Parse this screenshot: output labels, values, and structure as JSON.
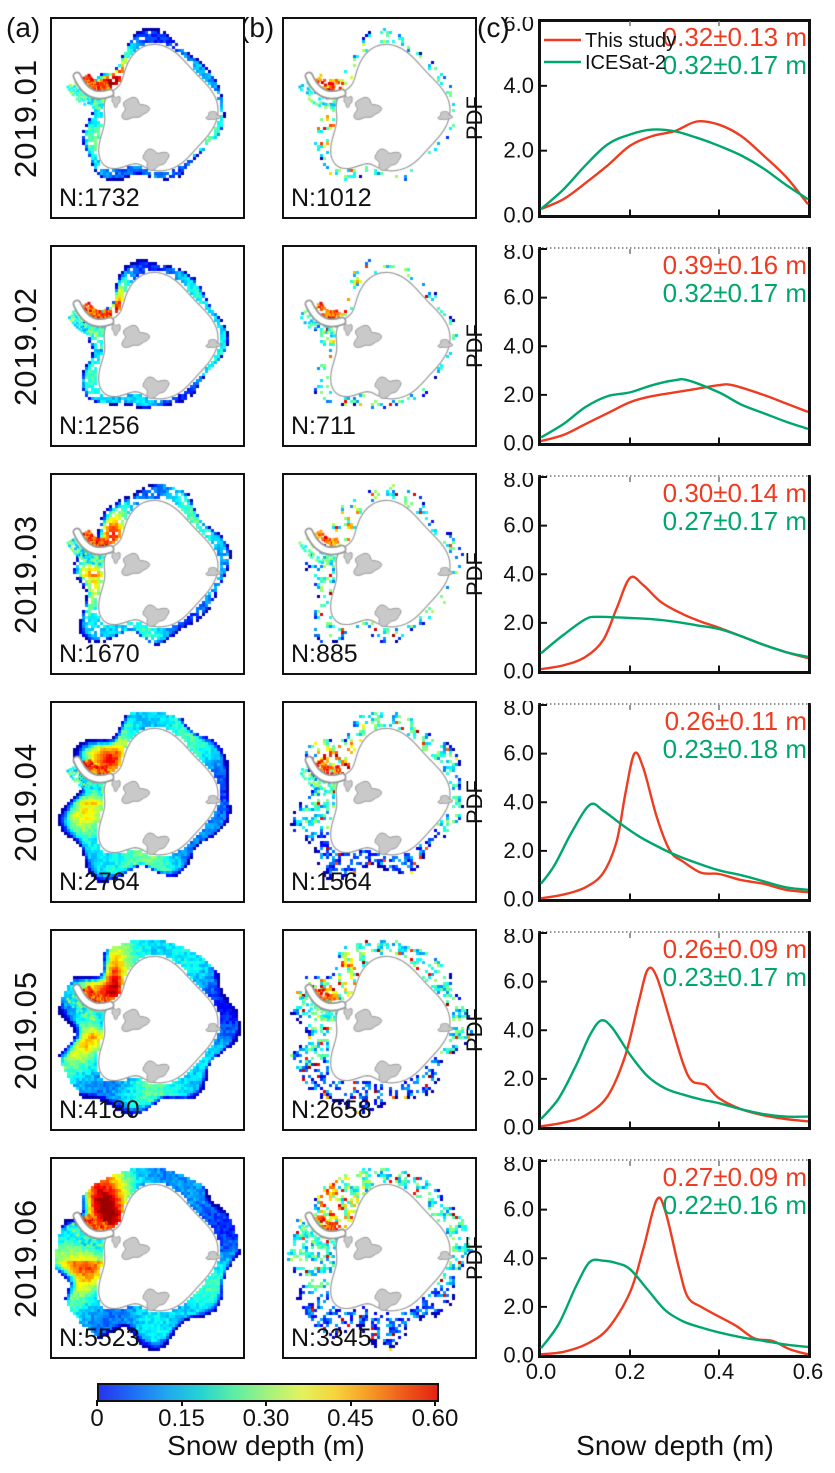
{
  "panels": {
    "a": "(a)",
    "b": "(b)",
    "c": "(c)"
  },
  "axis": {
    "xlabel": "Snow depth (m)",
    "ylabel": "PDF",
    "xticks": [
      "0.0",
      "0.2",
      "0.4",
      "0.6"
    ]
  },
  "legend": {
    "items": [
      {
        "label": "This study",
        "color": "#ee3c21"
      },
      {
        "label": "ICESat-2",
        "color": "#00a76d"
      }
    ]
  },
  "colorbar": {
    "label": "Snow depth (m)",
    "ticks": [
      "0",
      "0.15",
      "0.30",
      "0.45",
      "0.60"
    ],
    "gradient": [
      "#2633f0",
      "#1f6df5",
      "#1fa8f0",
      "#25d3d3",
      "#5ceea3",
      "#a4f27d",
      "#e3f25e",
      "#f7d33c",
      "#f79a25",
      "#ef5c1a",
      "#e32313"
    ]
  },
  "rows": [
    {
      "month": "2019.01",
      "map_a_n": "N:1732",
      "map_b_n": "N:1012"
    },
    {
      "month": "2019.02",
      "map_a_n": "N:1256",
      "map_b_n": "N:711"
    },
    {
      "month": "2019.03",
      "map_a_n": "N:1670",
      "map_b_n": "N:885"
    },
    {
      "month": "2019.04",
      "map_a_n": "N:2764",
      "map_b_n": "N:1564"
    },
    {
      "month": "2019.05",
      "map_a_n": "N:4180",
      "map_b_n": "N:2658"
    },
    {
      "month": "2019.06",
      "map_a_n": "N:5523",
      "map_b_n": "N:3345"
    }
  ],
  "chart_data": [
    {
      "type": "line",
      "month": "2019.01",
      "xlabel": "Snow depth (m)",
      "ylabel": "PDF",
      "xlim": [
        0,
        0.6
      ],
      "ylim": [
        0,
        6
      ],
      "yticks": [
        "0.0",
        "2.0",
        "4.0",
        "6.0"
      ],
      "series": [
        {
          "name": "This study",
          "color": "#ee3c21",
          "mean_std": "0.32±0.13 m",
          "x": [
            0,
            0.05,
            0.1,
            0.15,
            0.2,
            0.25,
            0.3,
            0.35,
            0.4,
            0.45,
            0.5,
            0.55,
            0.6
          ],
          "y": [
            0.2,
            0.5,
            1.0,
            1.55,
            2.15,
            2.45,
            2.6,
            2.9,
            2.8,
            2.45,
            1.85,
            1.2,
            0.35
          ]
        },
        {
          "name": "ICESat-2",
          "color": "#00a76d",
          "mean_std": "0.32±0.17 m",
          "x": [
            0,
            0.05,
            0.1,
            0.15,
            0.2,
            0.25,
            0.3,
            0.35,
            0.4,
            0.45,
            0.5,
            0.55,
            0.6
          ],
          "y": [
            0.2,
            0.8,
            1.55,
            2.2,
            2.5,
            2.65,
            2.6,
            2.4,
            2.15,
            1.85,
            1.45,
            0.95,
            0.5
          ]
        }
      ]
    },
    {
      "type": "line",
      "month": "2019.02",
      "xlabel": "Snow depth (m)",
      "ylabel": "PDF",
      "xlim": [
        0,
        0.6
      ],
      "ylim": [
        0,
        8
      ],
      "yticks": [
        "0.0",
        "2.0",
        "4.0",
        "6.0",
        "8.0"
      ],
      "series": [
        {
          "name": "This study",
          "color": "#ee3c21",
          "mean_std": "0.39±0.16 m",
          "x": [
            0,
            0.05,
            0.1,
            0.15,
            0.2,
            0.25,
            0.3,
            0.35,
            0.4,
            0.43,
            0.5,
            0.55,
            0.6
          ],
          "y": [
            0.1,
            0.35,
            0.8,
            1.25,
            1.7,
            1.95,
            2.1,
            2.25,
            2.4,
            2.4,
            2.0,
            1.65,
            1.3
          ]
        },
        {
          "name": "ICESat-2",
          "color": "#00a76d",
          "mean_std": "0.32±0.17 m",
          "x": [
            0,
            0.05,
            0.1,
            0.15,
            0.2,
            0.25,
            0.3,
            0.33,
            0.4,
            0.45,
            0.5,
            0.55,
            0.6
          ],
          "y": [
            0.25,
            0.8,
            1.5,
            1.95,
            2.1,
            2.4,
            2.6,
            2.6,
            2.1,
            1.6,
            1.25,
            0.9,
            0.6
          ]
        }
      ]
    },
    {
      "type": "line",
      "month": "2019.03",
      "xlabel": "Snow depth (m)",
      "ylabel": "PDF",
      "xlim": [
        0,
        0.6
      ],
      "ylim": [
        0,
        8
      ],
      "yticks": [
        "0.0",
        "2.0",
        "4.0",
        "6.0",
        "8.0"
      ],
      "series": [
        {
          "name": "This study",
          "color": "#ee3c21",
          "mean_std": "0.30±0.14 m",
          "x": [
            0,
            0.05,
            0.1,
            0.14,
            0.17,
            0.2,
            0.23,
            0.27,
            0.32,
            0.36,
            0.4,
            0.45,
            0.5,
            0.55,
            0.6
          ],
          "y": [
            0.1,
            0.25,
            0.6,
            1.3,
            2.6,
            3.85,
            3.55,
            2.85,
            2.35,
            2.05,
            1.8,
            1.45,
            1.1,
            0.8,
            0.55
          ]
        },
        {
          "name": "ICESat-2",
          "color": "#00a76d",
          "mean_std": "0.27±0.17 m",
          "x": [
            0,
            0.05,
            0.1,
            0.13,
            0.2,
            0.25,
            0.3,
            0.35,
            0.4,
            0.45,
            0.5,
            0.55,
            0.6
          ],
          "y": [
            0.75,
            1.5,
            2.15,
            2.25,
            2.2,
            2.15,
            2.05,
            1.9,
            1.75,
            1.45,
            1.1,
            0.8,
            0.6
          ]
        }
      ]
    },
    {
      "type": "line",
      "month": "2019.04",
      "xlabel": "Snow depth (m)",
      "ylabel": "PDF",
      "xlim": [
        0,
        0.6
      ],
      "ylim": [
        0,
        8
      ],
      "yticks": [
        "0.0",
        "2.0",
        "4.0",
        "6.0",
        "8.0"
      ],
      "series": [
        {
          "name": "This study",
          "color": "#ee3c21",
          "mean_std": "0.26±0.11 m",
          "x": [
            0,
            0.05,
            0.1,
            0.14,
            0.17,
            0.19,
            0.21,
            0.23,
            0.26,
            0.29,
            0.32,
            0.36,
            0.4,
            0.45,
            0.5,
            0.55,
            0.6
          ],
          "y": [
            0.05,
            0.2,
            0.5,
            1.1,
            2.4,
            4.4,
            6.0,
            5.4,
            3.4,
            2.0,
            1.55,
            1.1,
            1.05,
            0.8,
            0.65,
            0.4,
            0.3
          ]
        },
        {
          "name": "ICESat-2",
          "color": "#00a76d",
          "mean_std": "0.23±0.18 m",
          "x": [
            0,
            0.03,
            0.07,
            0.11,
            0.14,
            0.18,
            0.22,
            0.26,
            0.3,
            0.35,
            0.4,
            0.45,
            0.5,
            0.55,
            0.6
          ],
          "y": [
            0.65,
            1.4,
            2.8,
            3.9,
            3.65,
            3.1,
            2.6,
            2.2,
            1.85,
            1.5,
            1.2,
            1.0,
            0.75,
            0.5,
            0.4
          ]
        }
      ]
    },
    {
      "type": "line",
      "month": "2019.05",
      "xlabel": "Snow depth (m)",
      "ylabel": "PDF",
      "xlim": [
        0,
        0.6
      ],
      "ylim": [
        0,
        8
      ],
      "yticks": [
        "0.0",
        "2.0",
        "4.0",
        "6.0",
        "8.0"
      ],
      "series": [
        {
          "name": "This study",
          "color": "#ee3c21",
          "mean_std": "0.26±0.09 m",
          "x": [
            0,
            0.05,
            0.1,
            0.15,
            0.19,
            0.22,
            0.24,
            0.26,
            0.29,
            0.32,
            0.34,
            0.37,
            0.4,
            0.45,
            0.5,
            0.55,
            0.6
          ],
          "y": [
            0.05,
            0.2,
            0.5,
            1.3,
            3.0,
            5.2,
            6.5,
            6.2,
            4.4,
            2.6,
            1.9,
            1.75,
            1.2,
            0.75,
            0.5,
            0.35,
            0.25
          ]
        },
        {
          "name": "ICESat-2",
          "color": "#00a76d",
          "mean_std": "0.23±0.17 m",
          "x": [
            0,
            0.04,
            0.08,
            0.11,
            0.135,
            0.16,
            0.2,
            0.24,
            0.28,
            0.32,
            0.36,
            0.4,
            0.45,
            0.5,
            0.55,
            0.6
          ],
          "y": [
            0.35,
            1.2,
            2.6,
            3.8,
            4.4,
            4.1,
            3.0,
            2.1,
            1.6,
            1.35,
            1.15,
            1.0,
            0.75,
            0.55,
            0.45,
            0.45
          ]
        }
      ]
    },
    {
      "type": "line",
      "month": "2019.06",
      "xlabel": "Snow depth (m)",
      "ylabel": "PDF",
      "xlim": [
        0,
        0.6
      ],
      "ylim": [
        0,
        8
      ],
      "yticks": [
        "0.0",
        "2.0",
        "4.0",
        "6.0",
        "8.0"
      ],
      "series": [
        {
          "name": "This study",
          "color": "#ee3c21",
          "mean_std": "0.27±0.09 m",
          "x": [
            0,
            0.05,
            0.1,
            0.15,
            0.2,
            0.23,
            0.26,
            0.28,
            0.31,
            0.33,
            0.36,
            0.4,
            0.44,
            0.48,
            0.52,
            0.56,
            0.6
          ],
          "y": [
            0.05,
            0.15,
            0.45,
            1.1,
            2.6,
            4.4,
            6.4,
            5.9,
            3.6,
            2.4,
            2.0,
            1.6,
            1.2,
            0.7,
            0.6,
            0.25,
            0.05
          ]
        },
        {
          "name": "ICESat-2",
          "color": "#00a76d",
          "mean_std": "0.22±0.16 m",
          "x": [
            0,
            0.04,
            0.08,
            0.11,
            0.14,
            0.17,
            0.2,
            0.24,
            0.28,
            0.32,
            0.36,
            0.4,
            0.45,
            0.5,
            0.55,
            0.6
          ],
          "y": [
            0.3,
            1.3,
            2.9,
            3.85,
            3.9,
            3.8,
            3.55,
            2.7,
            1.85,
            1.4,
            1.15,
            0.95,
            0.75,
            0.6,
            0.45,
            0.35
          ]
        }
      ]
    }
  ]
}
